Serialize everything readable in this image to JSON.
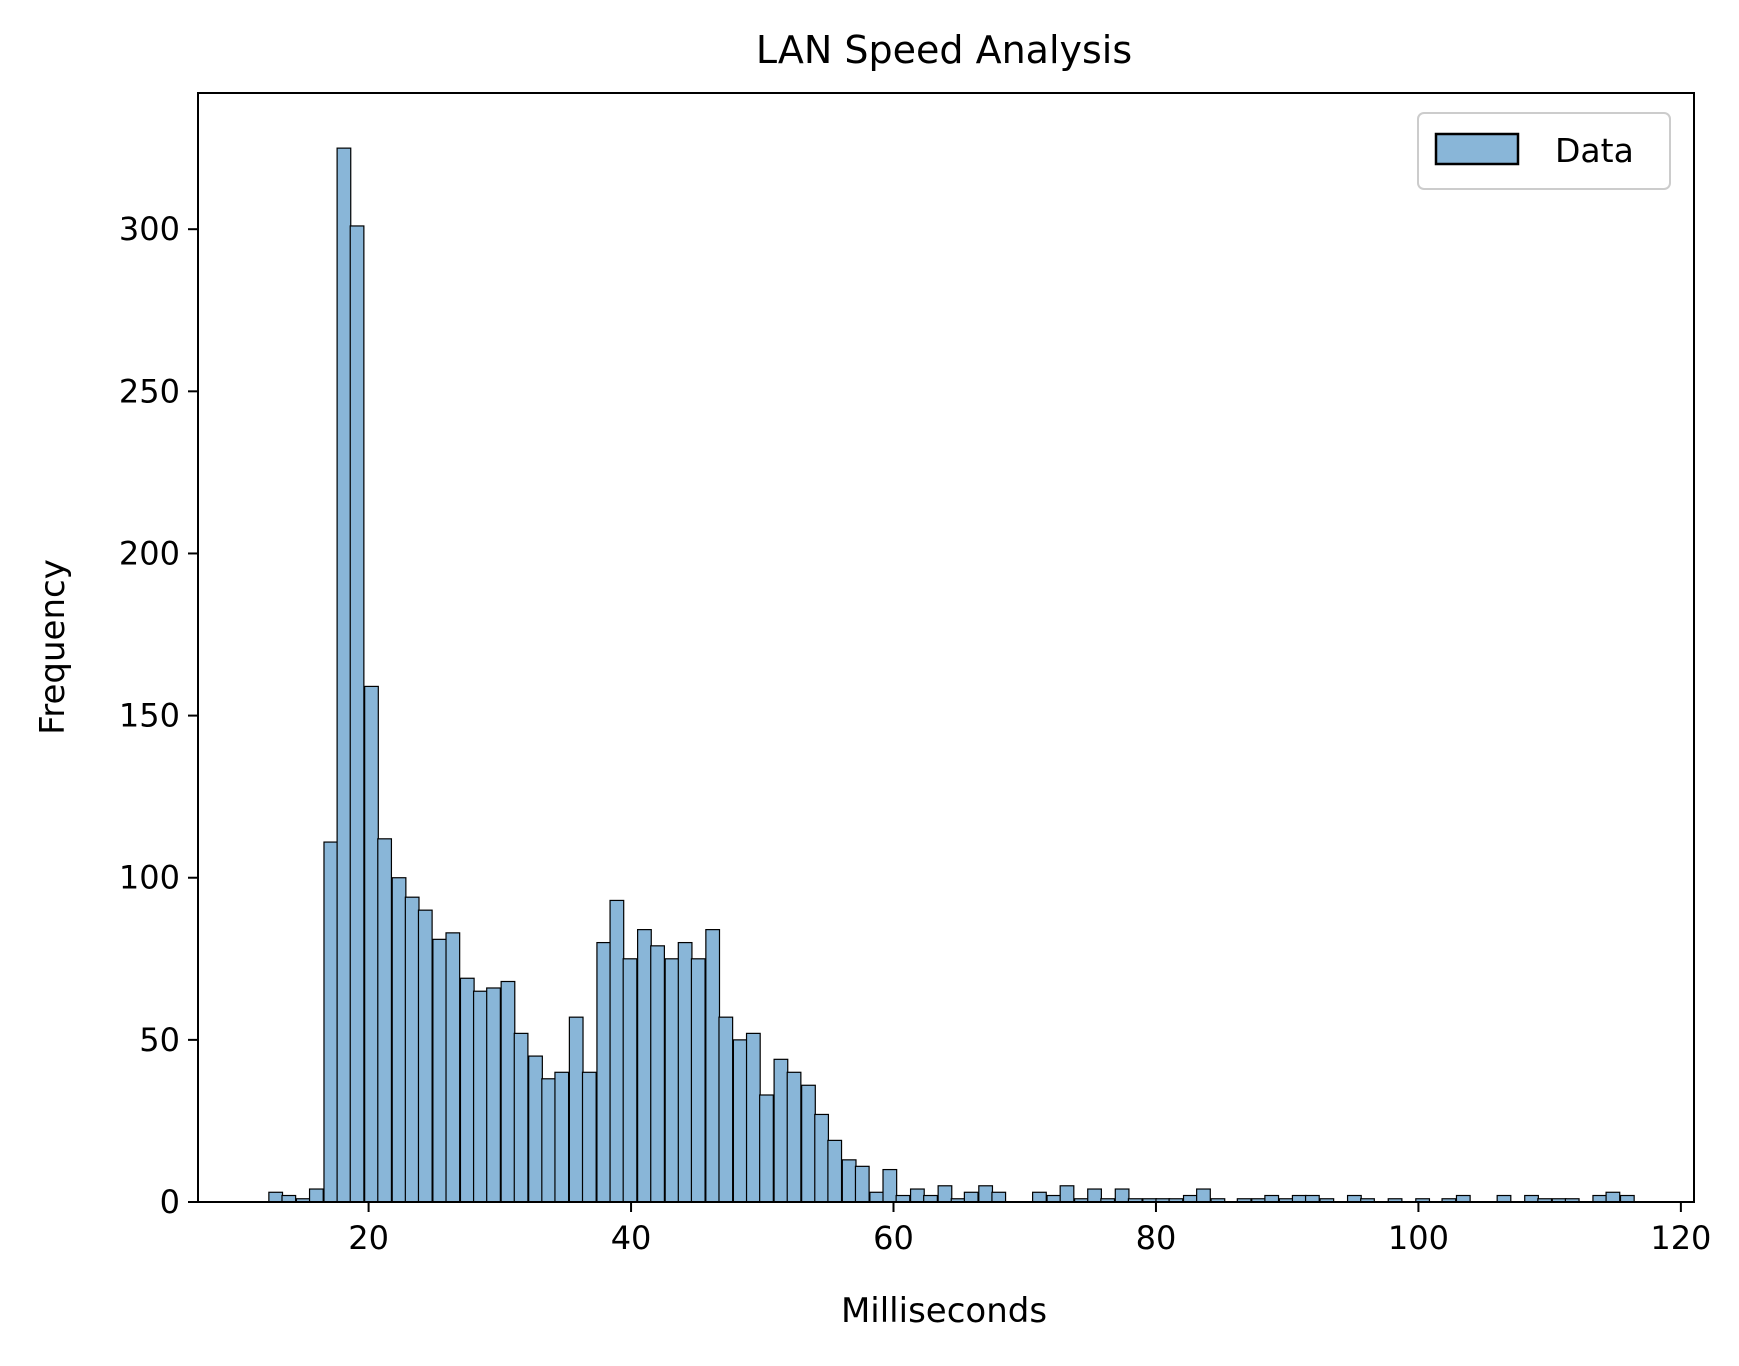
{
  "chart_data": {
    "type": "bar",
    "title": "LAN Speed Analysis",
    "xlabel": "Milliseconds",
    "ylabel": "Frequency",
    "xlim": [
      7,
      121
    ],
    "ylim": [
      0,
      342
    ],
    "bin_width": 1.04,
    "x_ticks": [
      20,
      40,
      60,
      80,
      100,
      120
    ],
    "y_ticks": [
      0,
      50,
      100,
      150,
      200,
      250,
      300
    ],
    "legend": {
      "label": "Data",
      "position": "top-right"
    },
    "grid": false,
    "colors": {
      "bar_fill": "#89b6d8",
      "bar_edge": "#000000",
      "axes": "#000000"
    },
    "x": [
      12.4,
      13.4,
      14.5,
      15.5,
      16.6,
      17.6,
      18.6,
      19.7,
      20.7,
      21.8,
      22.8,
      23.8,
      24.9,
      25.9,
      27.0,
      28.0,
      29.0,
      30.1,
      31.1,
      32.2,
      33.2,
      34.2,
      35.3,
      36.3,
      37.4,
      38.4,
      39.4,
      40.5,
      41.5,
      42.6,
      43.6,
      44.6,
      45.7,
      46.7,
      47.8,
      48.8,
      49.8,
      50.9,
      51.9,
      53.0,
      54.0,
      55.0,
      56.1,
      57.1,
      58.2,
      59.2,
      60.2,
      61.3,
      62.3,
      63.4,
      64.4,
      65.4,
      66.5,
      67.5,
      68.6,
      69.6,
      70.6,
      71.7,
      72.7,
      73.8,
      74.8,
      75.8,
      76.9,
      77.9,
      79.0,
      80.0,
      81.0,
      82.1,
      83.1,
      84.2,
      85.2,
      86.2,
      87.3,
      88.3,
      89.4,
      90.4,
      91.4,
      92.5,
      93.5,
      94.6,
      95.6,
      96.6,
      97.7,
      98.7,
      99.8,
      100.8,
      101.8,
      102.9,
      103.9,
      105.0,
      106.0,
      107.0,
      108.1,
      109.1,
      110.2,
      111.2,
      112.2,
      113.3,
      114.3,
      115.4
    ],
    "values": [
      3,
      2,
      1,
      4,
      111,
      325,
      301,
      159,
      112,
      100,
      94,
      90,
      81,
      83,
      69,
      65,
      66,
      68,
      52,
      45,
      38,
      40,
      57,
      40,
      80,
      93,
      75,
      84,
      79,
      75,
      80,
      75,
      84,
      57,
      50,
      52,
      33,
      44,
      40,
      36,
      27,
      19,
      13,
      11,
      3,
      10,
      2,
      4,
      2,
      5,
      1,
      3,
      5,
      3,
      0,
      0,
      3,
      2,
      5,
      1,
      4,
      1,
      4,
      1,
      1,
      1,
      1,
      2,
      4,
      1,
      0,
      1,
      1,
      2,
      1,
      2,
      2,
      1,
      0,
      2,
      1,
      0,
      1,
      0,
      1,
      0,
      1,
      2,
      0,
      0,
      2,
      0,
      2,
      1,
      1,
      1,
      0,
      2,
      3,
      2
    ]
  }
}
